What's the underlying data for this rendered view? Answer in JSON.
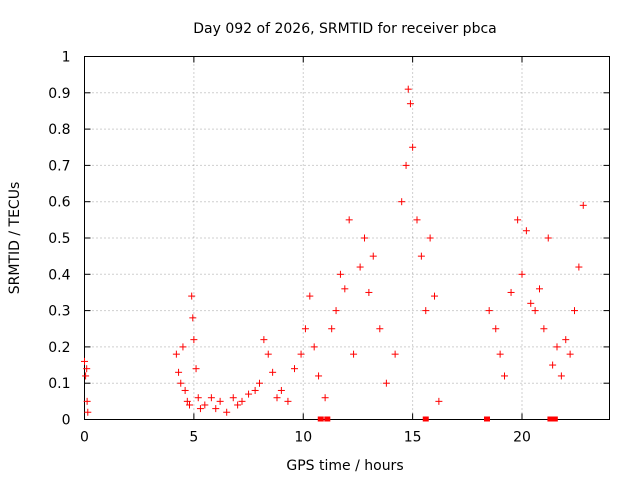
{
  "chart_data": {
    "type": "scatter",
    "title": "Day 092 of 2026, SRMTID for receiver pbca",
    "xlabel": "GPS time / hours",
    "ylabel": "SRMTID / TECUs",
    "xlim": [
      0,
      24
    ],
    "ylim": [
      0,
      1
    ],
    "xticks": [
      0,
      5,
      10,
      15,
      20
    ],
    "xtick_labels": [
      "0",
      "5",
      "10",
      "15",
      "20"
    ],
    "yticks": [
      0,
      0.1,
      0.2,
      0.3,
      0.4,
      0.5,
      0.6,
      0.7,
      0.8,
      0.9,
      1
    ],
    "ytick_labels": [
      "0",
      "0.1",
      "0.2",
      "0.3",
      "0.4",
      "0.5",
      "0.6",
      "0.7",
      "0.8",
      "0.9",
      "1"
    ],
    "grid": true,
    "legend": "none",
    "series": [
      {
        "color": "#ff0000",
        "marker": "plus",
        "points": [
          [
            0.0,
            0.16
          ],
          [
            0.05,
            0.12
          ],
          [
            0.1,
            0.14
          ],
          [
            0.12,
            0.05
          ],
          [
            0.15,
            0.02
          ],
          [
            4.2,
            0.18
          ],
          [
            4.3,
            0.13
          ],
          [
            4.4,
            0.1
          ],
          [
            4.5,
            0.2
          ],
          [
            4.6,
            0.08
          ],
          [
            4.7,
            0.05
          ],
          [
            4.8,
            0.04
          ],
          [
            4.9,
            0.34
          ],
          [
            4.95,
            0.28
          ],
          [
            5.0,
            0.22
          ],
          [
            5.1,
            0.14
          ],
          [
            5.2,
            0.06
          ],
          [
            5.3,
            0.03
          ],
          [
            5.5,
            0.04
          ],
          [
            5.8,
            0.06
          ],
          [
            6.0,
            0.03
          ],
          [
            6.2,
            0.05
          ],
          [
            6.5,
            0.02
          ],
          [
            6.8,
            0.06
          ],
          [
            7.0,
            0.04
          ],
          [
            7.2,
            0.05
          ],
          [
            7.5,
            0.07
          ],
          [
            7.8,
            0.08
          ],
          [
            8.0,
            0.1
          ],
          [
            8.2,
            0.22
          ],
          [
            8.4,
            0.18
          ],
          [
            8.6,
            0.13
          ],
          [
            8.8,
            0.06
          ],
          [
            9.0,
            0.08
          ],
          [
            9.3,
            0.05
          ],
          [
            9.6,
            0.14
          ],
          [
            9.9,
            0.18
          ],
          [
            10.1,
            0.25
          ],
          [
            10.3,
            0.34
          ],
          [
            10.5,
            0.2
          ],
          [
            10.7,
            0.12
          ],
          [
            11.0,
            0.06
          ],
          [
            11.3,
            0.25
          ],
          [
            11.5,
            0.3
          ],
          [
            11.7,
            0.4
          ],
          [
            11.9,
            0.36
          ],
          [
            12.1,
            0.55
          ],
          [
            12.3,
            0.18
          ],
          [
            12.6,
            0.42
          ],
          [
            12.8,
            0.5
          ],
          [
            13.0,
            0.35
          ],
          [
            13.2,
            0.45
          ],
          [
            13.5,
            0.25
          ],
          [
            13.8,
            0.1
          ],
          [
            14.2,
            0.18
          ],
          [
            14.5,
            0.6
          ],
          [
            14.7,
            0.7
          ],
          [
            14.8,
            0.91
          ],
          [
            14.9,
            0.87
          ],
          [
            15.0,
            0.75
          ],
          [
            15.2,
            0.55
          ],
          [
            15.4,
            0.45
          ],
          [
            15.6,
            0.3
          ],
          [
            15.8,
            0.5
          ],
          [
            16.0,
            0.34
          ],
          [
            16.2,
            0.05
          ],
          [
            18.5,
            0.3
          ],
          [
            18.8,
            0.25
          ],
          [
            19.0,
            0.18
          ],
          [
            19.2,
            0.12
          ],
          [
            19.5,
            0.35
          ],
          [
            19.8,
            0.55
          ],
          [
            20.0,
            0.4
          ],
          [
            20.2,
            0.52
          ],
          [
            20.4,
            0.32
          ],
          [
            20.6,
            0.3
          ],
          [
            20.8,
            0.36
          ],
          [
            21.0,
            0.25
          ],
          [
            21.2,
            0.5
          ],
          [
            21.4,
            0.15
          ],
          [
            21.6,
            0.2
          ],
          [
            21.8,
            0.12
          ],
          [
            22.0,
            0.22
          ],
          [
            22.2,
            0.18
          ],
          [
            22.4,
            0.3
          ],
          [
            22.6,
            0.42
          ],
          [
            22.8,
            0.59
          ]
        ]
      }
    ],
    "zero_markers": [
      10.8,
      11.1,
      15.6,
      18.4,
      21.3,
      21.5
    ]
  }
}
